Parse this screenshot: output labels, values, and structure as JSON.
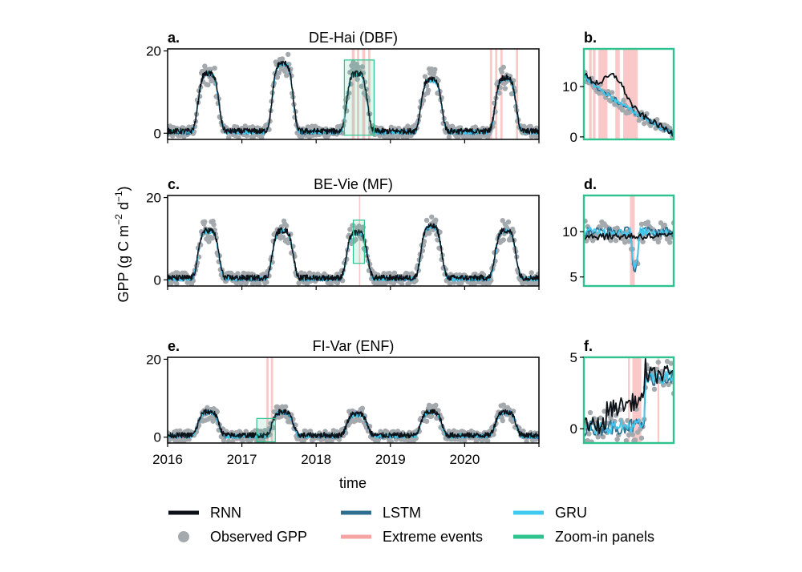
{
  "figure": {
    "ylabel_main": "GPP (g C m",
    "ylabel_sup1": "−2",
    "ylabel_mid": " d",
    "ylabel_sup2": "−1",
    "ylabel_end": ")",
    "xlabel": "time"
  },
  "colors": {
    "rnn": "#0b1116",
    "lstm": "#2f6e8e",
    "gru": "#3fc9ef",
    "observed": "#a4a9ae",
    "extreme": "#f6a3a3",
    "zoom": "#2ec38e"
  },
  "legend": [
    {
      "key": "rnn",
      "label": "RNN",
      "kind": "line"
    },
    {
      "key": "lstm",
      "label": "LSTM",
      "kind": "line"
    },
    {
      "key": "gru",
      "label": "GRU",
      "kind": "line"
    },
    {
      "key": "observed",
      "label": "Observed GPP",
      "kind": "dot"
    },
    {
      "key": "extreme",
      "label": "Extreme events",
      "kind": "line"
    },
    {
      "key": "zoom",
      "label": "Zoom-in panels",
      "kind": "line"
    }
  ],
  "chart_data": [
    {
      "id": "a",
      "letter": "a.",
      "type": "line",
      "title": "DE-Hai (DBF)",
      "x_range": [
        2016.0,
        2021.0
      ],
      "ylim": [
        -1.5,
        20.5
      ],
      "yticks": [
        0,
        20
      ],
      "xticks": [],
      "peaks": [
        14,
        16.5,
        14,
        12.5,
        13
      ],
      "extreme_events": [
        [
          2018.48,
          2018.52
        ],
        [
          2018.55,
          2018.58
        ],
        [
          2018.62,
          2018.66
        ],
        [
          2018.7,
          2018.73
        ],
        [
          2020.34,
          2020.37
        ],
        [
          2020.41,
          2020.44
        ],
        [
          2020.48,
          2020.51
        ],
        [
          2020.69,
          2020.72
        ]
      ],
      "zoom_window": [
        2018.38,
        2018.78
      ],
      "zoom_y": [
        -0.5,
        17.8
      ]
    },
    {
      "id": "b",
      "letter": "b.",
      "type": "line",
      "x_range": [
        2018.38,
        2018.78
      ],
      "ylim": [
        -0.5,
        17.5
      ],
      "yticks": [
        0,
        10
      ],
      "series_shape": "decline",
      "start": 12.5,
      "end": 0.5,
      "rnn_bump": 4.5,
      "extreme_events": [
        [
          2018.403,
          2018.415
        ],
        [
          2018.42,
          2018.432
        ],
        [
          2018.445,
          2018.485
        ],
        [
          2018.52,
          2018.54
        ],
        [
          2018.555,
          2018.62
        ]
      ]
    },
    {
      "id": "c",
      "letter": "c.",
      "type": "line",
      "title": "BE-Vie (MF)",
      "x_range": [
        2016.0,
        2021.0
      ],
      "ylim": [
        -1.5,
        20.5
      ],
      "yticks": [
        0,
        20
      ],
      "xticks": [],
      "peaks": [
        11.5,
        11.5,
        11,
        12.5,
        11.5
      ],
      "extreme_events": [
        [
          2018.577,
          2018.585
        ]
      ],
      "zoom_window": [
        2018.5,
        2018.65
      ],
      "zoom_y": [
        4.0,
        14.5
      ]
    },
    {
      "id": "d",
      "letter": "d.",
      "type": "line",
      "x_range": [
        2018.5,
        2018.65
      ],
      "ylim": [
        4.0,
        14.0
      ],
      "yticks": [
        5,
        10
      ],
      "series_shape": "flat",
      "start": 10.0,
      "end": 10.0,
      "dip": 5.8,
      "extreme_events": [
        [
          2018.577,
          2018.585
        ]
      ]
    },
    {
      "id": "e",
      "letter": "e.",
      "type": "line",
      "title": "FI-Var (ENF)",
      "x_range": [
        2016.0,
        2021.0
      ],
      "ylim": [
        -1.5,
        20.5
      ],
      "yticks": [
        0,
        20
      ],
      "xticks": [
        2016,
        2017,
        2018,
        2019,
        2020
      ],
      "peaks": [
        6,
        6,
        5.5,
        6,
        6
      ],
      "extreme_events": [
        [
          2017.33,
          2017.36
        ],
        [
          2017.39,
          2017.42
        ]
      ],
      "zoom_window": [
        2017.2,
        2017.45
      ],
      "zoom_y": [
        -1.2,
        4.8
      ]
    },
    {
      "id": "f",
      "letter": "f.",
      "type": "line",
      "x_range": [
        2017.2,
        2017.45
      ],
      "ylim": [
        -1.0,
        5.0
      ],
      "yticks": [
        0,
        5
      ],
      "series_shape": "rise",
      "start": 0.0,
      "end": 3.5,
      "extreme_events": [
        [
          2017.323,
          2017.328
        ],
        [
          2017.335,
          2017.36
        ],
        [
          2017.405,
          2017.41
        ]
      ]
    }
  ]
}
